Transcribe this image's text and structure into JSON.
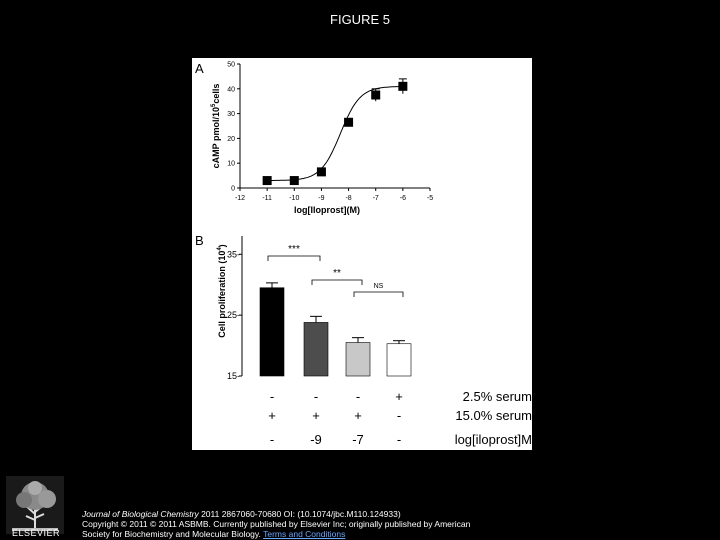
{
  "figure_title": "FIGURE 5",
  "panel_a_letter": "A",
  "panel_b_letter": "B",
  "chart_data": [
    {
      "type": "line",
      "panel": "A",
      "ylabel_main": "cAMP pmol/10",
      "ylabel_sup": "5",
      "ylabel_tail": "cells",
      "xlabel": "log[Iloprost](M)",
      "xlim": [
        -12,
        -5
      ],
      "ylim": [
        0,
        50
      ],
      "x_ticks": [
        -12,
        -11,
        -10,
        -9,
        -8,
        -7,
        -6,
        -5
      ],
      "y_ticks": [
        0,
        10,
        20,
        30,
        40,
        50
      ],
      "series": [
        {
          "x": [
            -11,
            -10,
            -9,
            -8,
            -7,
            -6
          ],
          "y": [
            3,
            3,
            6.5,
            26.5,
            37.5,
            41
          ],
          "err": [
            0.5,
            0.5,
            0.8,
            1.0,
            2.5,
            3.0
          ]
        }
      ],
      "fit_curve": {
        "bottom": 3,
        "top": 41,
        "logEC50": -8.3,
        "hill": 1.2
      }
    },
    {
      "type": "bar",
      "panel": "B",
      "ylabel_main": "Cell proliferation (10",
      "ylabel_sup": "4",
      "ylabel_tail": ")",
      "ylim": [
        15,
        38
      ],
      "y_ticks": [
        15,
        25,
        35
      ],
      "values": [
        29.5,
        23.8,
        20.5,
        20.3
      ],
      "errors": [
        0.8,
        1.0,
        0.8,
        0.5
      ],
      "colors": [
        "#000000",
        "#4d4d4d",
        "#c8c8c8",
        "#ffffff"
      ],
      "significance": [
        {
          "from": 0,
          "to": 1,
          "label": "***"
        },
        {
          "from": 1,
          "to": 2,
          "label": "**"
        },
        {
          "from": 2,
          "to": 3,
          "label": "NS"
        }
      ],
      "condition_rows": [
        {
          "label": "2.5% serum",
          "cells": [
            "-",
            "-",
            "-",
            "+"
          ]
        },
        {
          "label": "15.0% serum",
          "cells": [
            "+",
            "+",
            "+",
            "-"
          ]
        },
        {
          "label": "log[iloprost]M",
          "cells": [
            "-",
            "-9",
            "-7",
            "-"
          ]
        }
      ]
    }
  ],
  "publisher": {
    "logo_label": "ELSEVIER",
    "journal": "Journal of Biological Chemistry",
    "citation_rest": " 2011 2867060-70680 OI: (10.1074/jbc.M110.124933)",
    "copyright_line": "Copyright © 2011 © 2011 ASBMB. Currently published by Elsevier Inc; originally published by American",
    "society_line": "Society for Biochemistry and Molecular Biology. ",
    "terms_link": "Terms and Conditions"
  }
}
